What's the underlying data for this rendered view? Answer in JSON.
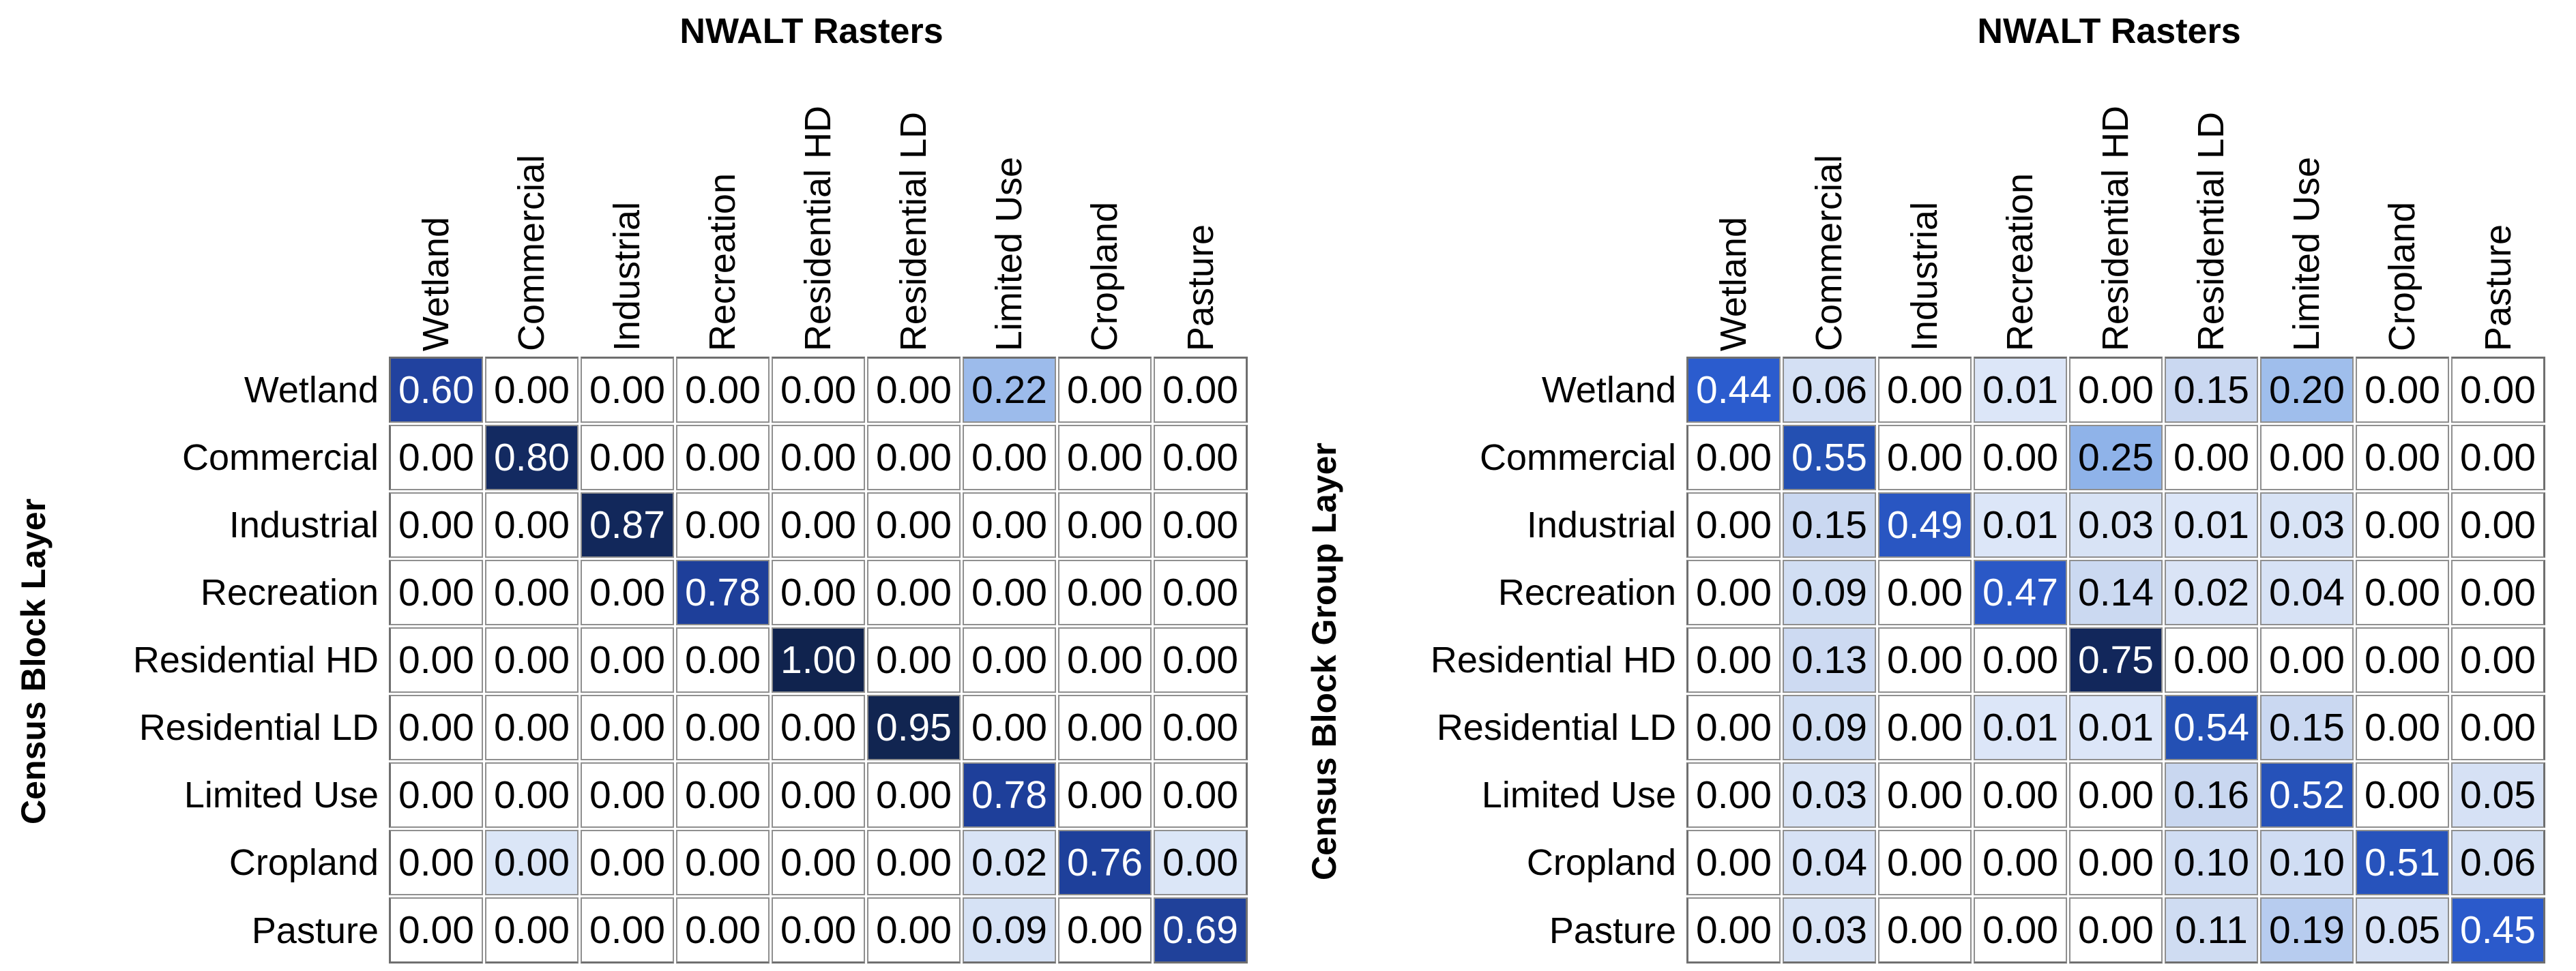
{
  "figure": {
    "description": "Two side-by-side blue heatmap confusion matrices comparing NWALT raster land-use classes against census-derived layers",
    "palette": {
      "background": "#FFFFFF",
      "gridline": "#8F8F8F",
      "frame": "#6F6F6F",
      "text": "#000000",
      "text_on_dark_cell": "#FFFFFF",
      "dark_navy_high": "#10234E",
      "royal_blue_mid": "#2B5CCE",
      "light_blue_low": "#D9E4F6"
    }
  },
  "chart_data": [
    {
      "type": "heatmap",
      "title": "NWALT Rasters",
      "x_axis_title": "NWALT Rasters",
      "y_axis_title": "Census Block Layer",
      "value_range": [
        0,
        1
      ],
      "value_format": "0.00",
      "grid": true,
      "legend": "none",
      "colormap": "white to light blue to royal blue to dark navy, normalized per matrix",
      "columns": [
        "Wetland",
        "Commercial",
        "Industrial",
        "Recreation",
        "Residential HD",
        "Residential LD",
        "Limited Use",
        "Cropland",
        "Pasture"
      ],
      "rows": [
        "Wetland",
        "Commercial",
        "Industrial",
        "Recreation",
        "Residential HD",
        "Residential LD",
        "Limited Use",
        "Cropland",
        "Pasture"
      ],
      "values": [
        [
          0.6,
          0.0,
          0.0,
          0.0,
          0.0,
          0.0,
          0.22,
          0.0,
          0.0
        ],
        [
          0.0,
          0.8,
          0.0,
          0.0,
          0.0,
          0.0,
          0.0,
          0.0,
          0.0
        ],
        [
          0.0,
          0.0,
          0.87,
          0.0,
          0.0,
          0.0,
          0.0,
          0.0,
          0.0
        ],
        [
          0.0,
          0.0,
          0.0,
          0.78,
          0.0,
          0.0,
          0.0,
          0.0,
          0.0
        ],
        [
          0.0,
          0.0,
          0.0,
          0.0,
          1.0,
          0.0,
          0.0,
          0.0,
          0.0
        ],
        [
          0.0,
          0.0,
          0.0,
          0.0,
          0.0,
          0.95,
          0.0,
          0.0,
          0.0
        ],
        [
          0.0,
          0.0,
          0.0,
          0.0,
          0.0,
          0.0,
          0.78,
          0.0,
          0.0
        ],
        [
          0.0,
          0.0,
          0.0,
          0.0,
          0.0,
          0.0,
          0.02,
          0.76,
          0.0
        ],
        [
          0.0,
          0.0,
          0.0,
          0.0,
          0.0,
          0.0,
          0.09,
          0.0,
          0.69
        ]
      ],
      "value_labels": [
        [
          "0.60",
          "0.00",
          "0.00",
          "0.00",
          "0.00",
          "0.00",
          "0.22",
          "0.00",
          "0.00"
        ],
        [
          "0.00",
          "0.80",
          "0.00",
          "0.00",
          "0.00",
          "0.00",
          "0.00",
          "0.00",
          "0.00"
        ],
        [
          "0.00",
          "0.00",
          "0.87",
          "0.00",
          "0.00",
          "0.00",
          "0.00",
          "0.00",
          "0.00"
        ],
        [
          "0.00",
          "0.00",
          "0.00",
          "0.78",
          "0.00",
          "0.00",
          "0.00",
          "0.00",
          "0.00"
        ],
        [
          "0.00",
          "0.00",
          "0.00",
          "0.00",
          "1.00",
          "0.00",
          "0.00",
          "0.00",
          "0.00"
        ],
        [
          "0.00",
          "0.00",
          "0.00",
          "0.00",
          "0.00",
          "0.95",
          "0.00",
          "0.00",
          "0.00"
        ],
        [
          "0.00",
          "0.00",
          "0.00",
          "0.00",
          "0.00",
          "0.00",
          "0.78",
          "0.00",
          "0.00"
        ],
        [
          "0.00",
          "0.00",
          "0.00",
          "0.00",
          "0.00",
          "0.00",
          "0.02",
          "0.76",
          "0.00"
        ],
        [
          "0.00",
          "0.00",
          "0.00",
          "0.00",
          "0.00",
          "0.00",
          "0.09",
          "0.00",
          "0.69"
        ]
      ],
      "cell_colors": [
        [
          "#21429F",
          "#FFFFFF",
          "#FFFFFF",
          "#FFFFFF",
          "#FFFFFF",
          "#FFFFFF",
          "#9CBBEB",
          "#FFFFFF",
          "#FFFFFF"
        ],
        [
          "#FFFFFF",
          "#132A61",
          "#FFFFFF",
          "#FFFFFF",
          "#FFFFFF",
          "#FFFFFF",
          "#FFFFFF",
          "#FFFFFF",
          "#FFFFFF"
        ],
        [
          "#FFFFFF",
          "#FFFFFF",
          "#12285B",
          "#FFFFFF",
          "#FFFFFF",
          "#FFFFFF",
          "#FFFFFF",
          "#FFFFFF",
          "#FFFFFF"
        ],
        [
          "#FFFFFF",
          "#FFFFFF",
          "#FFFFFF",
          "#1E3F9A",
          "#FFFFFF",
          "#FFFFFF",
          "#FFFFFF",
          "#FFFFFF",
          "#FFFFFF"
        ],
        [
          "#FFFFFF",
          "#FFFFFF",
          "#FFFFFF",
          "#FFFFFF",
          "#10234E",
          "#FFFFFF",
          "#FFFFFF",
          "#FFFFFF",
          "#FFFFFF"
        ],
        [
          "#FFFFFF",
          "#FFFFFF",
          "#FFFFFF",
          "#FFFFFF",
          "#FFFFFF",
          "#112551",
          "#FFFFFF",
          "#FFFFFF",
          "#FFFFFF"
        ],
        [
          "#FFFFFF",
          "#FFFFFF",
          "#FFFFFF",
          "#FFFFFF",
          "#FFFFFF",
          "#FFFFFF",
          "#1E3F9A",
          "#FFFFFF",
          "#FFFFFF"
        ],
        [
          "#FFFFFF",
          "#DBE6F7",
          "#FFFFFF",
          "#FFFFFF",
          "#FFFFFF",
          "#FFFFFF",
          "#D9E4F6",
          "#1E409B",
          "#DBE6F7"
        ],
        [
          "#FFFFFF",
          "#FFFFFF",
          "#FFFFFF",
          "#FFFFFF",
          "#FFFFFF",
          "#FFFFFF",
          "#D6E2F5",
          "#FFFFFF",
          "#20419A"
        ]
      ]
    },
    {
      "type": "heatmap",
      "title": "NWALT Rasters",
      "x_axis_title": "NWALT Rasters",
      "y_axis_title": "Census Block Group Layer",
      "value_range": [
        0,
        1
      ],
      "value_format": "0.00",
      "grid": true,
      "legend": "none",
      "colormap": "white to light blue to royal blue to dark navy, normalized per matrix",
      "columns": [
        "Wetland",
        "Commercial",
        "Industrial",
        "Recreation",
        "Residential HD",
        "Residential LD",
        "Limited Use",
        "Cropland",
        "Pasture"
      ],
      "rows": [
        "Wetland",
        "Commercial",
        "Industrial",
        "Recreation",
        "Residential HD",
        "Residential LD",
        "Limited Use",
        "Cropland",
        "Pasture"
      ],
      "values": [
        [
          0.44,
          0.06,
          0.0,
          0.01,
          0.0,
          0.15,
          0.2,
          0.0,
          0.0
        ],
        [
          0.0,
          0.55,
          0.0,
          0.0,
          0.25,
          0.0,
          0.0,
          0.0,
          0.0
        ],
        [
          0.0,
          0.15,
          0.49,
          0.01,
          0.03,
          0.01,
          0.03,
          0.0,
          0.0
        ],
        [
          0.0,
          0.09,
          0.0,
          0.47,
          0.14,
          0.02,
          0.04,
          0.0,
          0.0
        ],
        [
          0.0,
          0.13,
          0.0,
          0.0,
          0.75,
          0.0,
          0.0,
          0.0,
          0.0
        ],
        [
          0.0,
          0.09,
          0.0,
          0.01,
          0.01,
          0.54,
          0.15,
          0.0,
          0.0
        ],
        [
          0.0,
          0.03,
          0.0,
          0.0,
          0.0,
          0.16,
          0.52,
          0.0,
          0.05
        ],
        [
          0.0,
          0.04,
          0.0,
          0.0,
          0.0,
          0.1,
          0.1,
          0.51,
          0.06
        ],
        [
          0.0,
          0.03,
          0.0,
          0.0,
          0.0,
          0.11,
          0.19,
          0.05,
          0.45
        ]
      ],
      "value_labels": [
        [
          "0.44",
          "0.06",
          "0.00",
          "0.01",
          "0.00",
          "0.15",
          "0.20",
          "0.00",
          "0.00"
        ],
        [
          "0.00",
          "0.55",
          "0.00",
          "0.00",
          "0.25",
          "0.00",
          "0.00",
          "0.00",
          "0.00"
        ],
        [
          "0.00",
          "0.15",
          "0.49",
          "0.01",
          "0.03",
          "0.01",
          "0.03",
          "0.00",
          "0.00"
        ],
        [
          "0.00",
          "0.09",
          "0.00",
          "0.47",
          "0.14",
          "0.02",
          "0.04",
          "0.00",
          "0.00"
        ],
        [
          "0.00",
          "0.13",
          "0.00",
          "0.00",
          "0.75",
          "0.00",
          "0.00",
          "0.00",
          "0.00"
        ],
        [
          "0.00",
          "0.09",
          "0.00",
          "0.01",
          "0.01",
          "0.54",
          "0.15",
          "0.00",
          "0.00"
        ],
        [
          "0.00",
          "0.03",
          "0.00",
          "0.00",
          "0.00",
          "0.16",
          "0.52",
          "0.00",
          "0.05"
        ],
        [
          "0.00",
          "0.04",
          "0.00",
          "0.00",
          "0.00",
          "0.10",
          "0.10",
          "0.51",
          "0.06"
        ],
        [
          "0.00",
          "0.03",
          "0.00",
          "0.00",
          "0.00",
          "0.11",
          "0.19",
          "0.05",
          "0.45"
        ]
      ],
      "cell_colors": [
        [
          "#2B5CCE",
          "#D4E0F4",
          "#FFFFFF",
          "#DCE6F8",
          "#FFFFFF",
          "#CAD8F1",
          "#9FBEEC",
          "#FFFFFF",
          "#FFFFFF"
        ],
        [
          "#FFFFFF",
          "#2450B2",
          "#FFFFFF",
          "#FFFFFF",
          "#8FB3E9",
          "#FFFFFF",
          "#FFFFFF",
          "#FFFFFF",
          "#FFFFFF"
        ],
        [
          "#FFFFFF",
          "#CAD8F1",
          "#2956C2",
          "#DCE6F8",
          "#D8E3F5",
          "#DCE6F8",
          "#D8E3F5",
          "#FFFFFF",
          "#FFFFFF"
        ],
        [
          "#FFFFFF",
          "#D1DEF3",
          "#FFFFFF",
          "#2A58C6",
          "#CBD9F1",
          "#DAE4F6",
          "#D7E2F5",
          "#FFFFFF",
          "#FFFFFF"
        ],
        [
          "#FFFFFF",
          "#CDDAF2",
          "#FFFFFF",
          "#FFFFFF",
          "#12275B",
          "#FFFFFF",
          "#FFFFFF",
          "#FFFFFF",
          "#FFFFFF"
        ],
        [
          "#FFFFFF",
          "#D1DEF3",
          "#FFFFFF",
          "#DCE6F8",
          "#DCE6F8",
          "#2450B4",
          "#CAD8F1",
          "#FFFFFF",
          "#FFFFFF"
        ],
        [
          "#FFFFFF",
          "#D8E3F5",
          "#FFFFFF",
          "#FFFFFF",
          "#FFFFFF",
          "#C9D7F0",
          "#2652B9",
          "#FFFFFF",
          "#D6E1F5"
        ],
        [
          "#FFFFFF",
          "#D7E2F5",
          "#FFFFFF",
          "#FFFFFF",
          "#FFFFFF",
          "#D0DDF3",
          "#D0DDF3",
          "#2753BC",
          "#D4E0F4"
        ],
        [
          "#FFFFFF",
          "#D8E3F5",
          "#FFFFFF",
          "#FFFFFF",
          "#FFFFFF",
          "#CFDCF2",
          "#B7CCEF",
          "#D6E1F5",
          "#2B5ACB"
        ]
      ]
    }
  ]
}
